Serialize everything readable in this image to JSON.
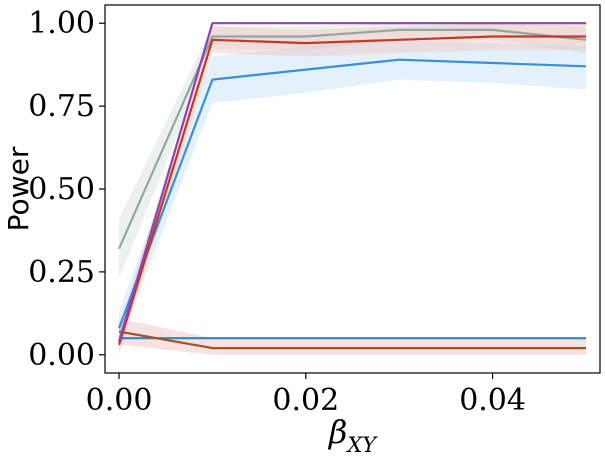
{
  "chart_data": {
    "type": "line",
    "title": "",
    "xlabel": "β",
    "xlabel_subscript": "XY",
    "ylabel": "Power",
    "xlim": [
      -0.0015,
      0.0515
    ],
    "ylim": [
      -0.055,
      1.055
    ],
    "grid": false,
    "x": [
      0.0,
      0.01,
      0.02,
      0.03,
      0.04,
      0.05
    ],
    "xticks": [
      0.0,
      0.02,
      0.04
    ],
    "xtick_labels": [
      "0.00",
      "0.02",
      "0.04"
    ],
    "yticks": [
      0.0,
      0.25,
      0.5,
      0.75,
      1.0
    ],
    "ytick_labels": [
      "0.00",
      "0.25",
      "0.50",
      "0.75",
      "1.00"
    ],
    "series": [
      {
        "color": "#2e86c1",
        "values": [
          0.05,
          0.05,
          0.05,
          0.05,
          0.05,
          0.05
        ],
        "ci_lower": [
          0.05,
          0.05,
          0.05,
          0.05,
          0.05,
          0.05
        ],
        "ci_upper": [
          0.05,
          0.05,
          0.05,
          0.05,
          0.05,
          0.05
        ],
        "band_color": "#aed6f1"
      },
      {
        "color": "#a0522d",
        "values": [
          0.07,
          0.02,
          0.02,
          0.02,
          0.02,
          0.02
        ],
        "ci_lower": [
          0.03,
          0.0,
          0.0,
          0.0,
          0.0,
          0.0
        ],
        "ci_upper": [
          0.11,
          0.05,
          0.05,
          0.05,
          0.05,
          0.05
        ],
        "band_color": "#e6b0aa"
      },
      {
        "color": "#95a5a6",
        "values": [
          0.32,
          0.96,
          0.96,
          0.98,
          0.98,
          0.95
        ],
        "ci_lower": [
          0.23,
          0.92,
          0.92,
          0.95,
          0.95,
          0.91
        ],
        "ci_upper": [
          0.41,
          0.99,
          0.99,
          1.0,
          1.0,
          0.99
        ],
        "band_color": "#c8d6cf"
      },
      {
        "color": "#3a8fd9",
        "values": [
          0.08,
          0.83,
          0.86,
          0.89,
          0.88,
          0.87
        ],
        "ci_lower": [
          0.03,
          0.76,
          0.79,
          0.83,
          0.82,
          0.8
        ],
        "ci_upper": [
          0.13,
          0.9,
          0.93,
          0.95,
          0.94,
          0.93
        ],
        "band_color": "#aed6f1"
      },
      {
        "color": "#c0392b",
        "values": [
          0.03,
          0.95,
          0.94,
          0.95,
          0.96,
          0.96
        ],
        "ci_lower": [
          0.0,
          0.91,
          0.9,
          0.91,
          0.92,
          0.92
        ],
        "ci_upper": [
          0.07,
          0.99,
          0.98,
          0.99,
          1.0,
          1.0
        ],
        "band_color": "#f5b7b1"
      },
      {
        "color": "#8e44ad",
        "values": [
          0.04,
          1.0,
          1.0,
          1.0,
          1.0,
          1.0
        ],
        "ci_lower": [
          0.01,
          1.0,
          1.0,
          1.0,
          1.0,
          1.0
        ],
        "ci_upper": [
          0.08,
          1.0,
          1.0,
          1.0,
          1.0,
          1.0
        ],
        "band_color": "#d2b4de"
      }
    ]
  }
}
